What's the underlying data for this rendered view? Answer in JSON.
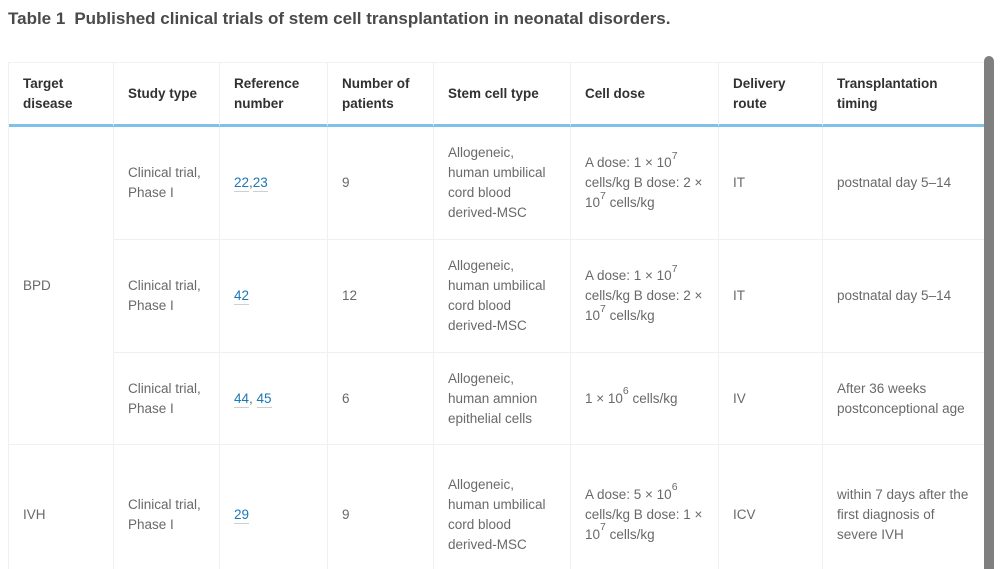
{
  "title": {
    "label": "Table 1",
    "text": "Published clinical trials of stem cell transplantation in neonatal disorders."
  },
  "colors": {
    "accent_blue": "#7fc1e8",
    "link_blue": "#1a78b6",
    "grid_gray": "#f0f0f0",
    "scrollbar_gray": "#7f7f7f",
    "title_gray": "#4a4a4a"
  },
  "table": {
    "headers": [
      "Target disease",
      "Study type",
      "Reference number",
      "Number of patients",
      "Stem cell type",
      "Cell dose",
      "Delivery route",
      "Transplantation timing"
    ],
    "diseases": [
      {
        "label": "BPD",
        "rowspan": 3
      },
      {
        "label": "IVH",
        "rowspan": 1
      }
    ],
    "rows": [
      {
        "study": "Clinical trial, Phase I",
        "refs": [
          {
            "link": "22"
          },
          {
            "t": ","
          },
          {
            "link": "23"
          }
        ],
        "patients": "9",
        "cell_type": "Allogeneic, human umbilical cord blood derived-MSC",
        "dose": [
          {
            "t": "A dose: 1 × 10"
          },
          {
            "sup": "7"
          },
          {
            "t": " cells/kg B dose: 2 × 10"
          },
          {
            "sup": "7"
          },
          {
            "t": " cells/kg"
          }
        ],
        "route": "IT",
        "timing": "postnatal day 5–14"
      },
      {
        "study": "Clinical trial, Phase I",
        "refs": [
          {
            "link": "42"
          }
        ],
        "patients": "12",
        "cell_type": "Allogeneic, human umbilical cord blood derived-MSC",
        "dose": [
          {
            "t": "A dose: 1 × 10"
          },
          {
            "sup": "7"
          },
          {
            "t": " cells/kg B dose: 2 × 10"
          },
          {
            "sup": "7"
          },
          {
            "t": " cells/kg"
          }
        ],
        "route": "IT",
        "timing": "postnatal day 5–14"
      },
      {
        "study": "Clinical trial, Phase I",
        "refs": [
          {
            "link": "44"
          },
          {
            "t": ", "
          },
          {
            "link": "45"
          }
        ],
        "patients": "6",
        "cell_type": "Allogeneic, human amnion epithelial cells",
        "dose": [
          {
            "t": "1 × 10"
          },
          {
            "sup": "6"
          },
          {
            "t": " cells/kg"
          }
        ],
        "route": "IV",
        "timing": "After 36 weeks postconceptional age"
      },
      {
        "study": "Clinical trial, Phase I",
        "refs": [
          {
            "link": "29"
          }
        ],
        "patients": "9",
        "cell_type": "Allogeneic, human umbilical cord blood derived-MSC",
        "dose": [
          {
            "t": "A dose: 5 × 10"
          },
          {
            "sup": "6"
          },
          {
            "t": " cells/kg B dose: 1 × 10"
          },
          {
            "sup": "7"
          },
          {
            "t": " cells/kg"
          }
        ],
        "route": "ICV",
        "timing": "within 7 days after the first diagnosis of severe IVH"
      }
    ]
  }
}
